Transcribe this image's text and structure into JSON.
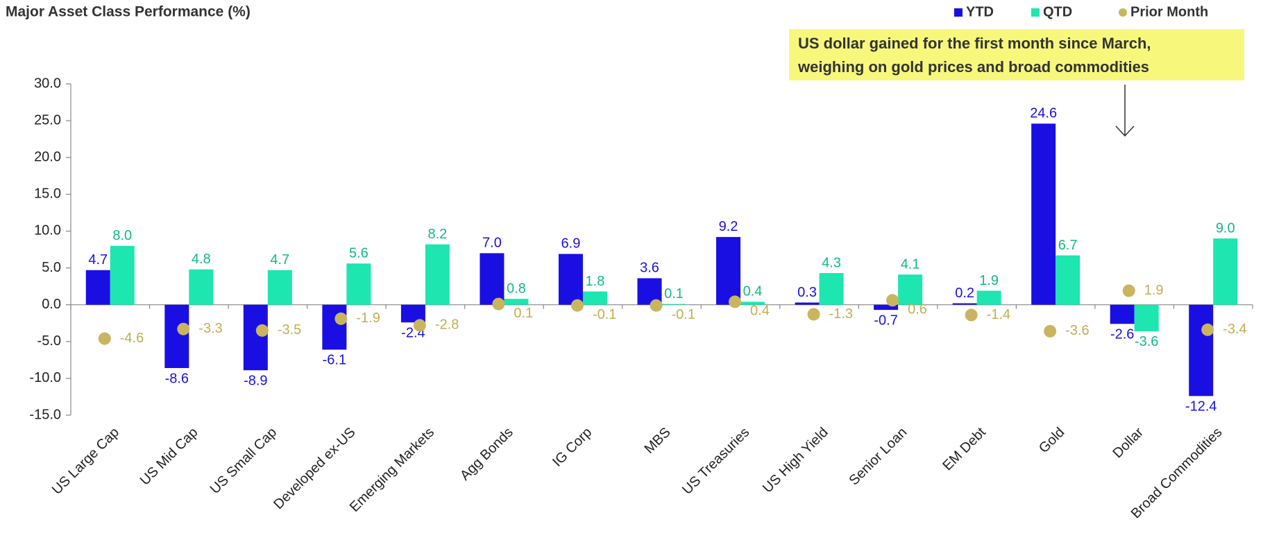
{
  "chart_data": {
    "type": "bar",
    "title": "Major Asset Class Performance (%)",
    "annotation": [
      "US dollar gained for the first month since March,",
      "weighing on gold prices and broad commodities"
    ],
    "categories": [
      "US Large Cap",
      "US Mid Cap",
      "US Small Cap",
      "Developed ex-US",
      "Emerging Markets",
      "Agg Bonds",
      "IG Corp",
      "MBS",
      "US Treasuries",
      "US High Yield",
      "Senior Loan",
      "EM Debt",
      "Gold",
      "Dollar",
      "Broad Commodities"
    ],
    "series": [
      {
        "name": "YTD",
        "color": "#1a0fe3",
        "label_color": "#1a0fe3",
        "mark": "bar",
        "values": [
          4.7,
          -8.6,
          -8.9,
          -6.1,
          -2.4,
          7.0,
          6.9,
          3.6,
          9.2,
          0.3,
          -0.7,
          0.2,
          24.6,
          -2.6,
          -12.4
        ],
        "value_labels": [
          "4.7",
          "-8.6",
          "-8.9",
          "-6.1",
          "-2.4",
          "7.0",
          "6.9",
          "3.6",
          "9.2",
          "0.3",
          "-0.7",
          "0.2",
          "24.6",
          "-2.6",
          "-12.4"
        ]
      },
      {
        "name": "QTD",
        "color": "#1de6b0",
        "label_color": "#10b88a",
        "mark": "bar",
        "values": [
          8.0,
          4.8,
          4.7,
          5.6,
          8.2,
          0.8,
          1.8,
          0.1,
          0.4,
          4.3,
          4.1,
          1.9,
          6.7,
          -3.6,
          9.0
        ],
        "value_labels": [
          "8.0",
          "4.8",
          "4.7",
          "5.6",
          "8.2",
          "0.8",
          "1.8",
          "0.1",
          "0.4",
          "4.3",
          "4.1",
          "1.9",
          "6.7",
          "-3.6",
          "9.0"
        ]
      },
      {
        "name": "Prior Month",
        "color": "#c9b55f",
        "label_color": "#c2ad52",
        "mark": "dot",
        "values": [
          -4.6,
          -3.3,
          -3.5,
          -1.9,
          -2.8,
          0.1,
          -0.1,
          -0.1,
          0.4,
          -1.3,
          0.6,
          -1.4,
          -3.6,
          1.9,
          -3.4
        ],
        "value_labels": [
          "-4.6",
          "-3.3",
          "-3.5",
          "-1.9",
          "-2.8",
          "0.1",
          "-0.1",
          "-0.1",
          "0.4",
          "-1.3",
          "0.6",
          "-1.4",
          "-3.6",
          "1.9",
          "-3.4"
        ]
      }
    ],
    "ylim": [
      -15,
      30
    ],
    "yticks": [
      {
        "value": -15,
        "label": "-15.0"
      },
      {
        "value": -10,
        "label": "-10.0"
      },
      {
        "value": -5,
        "label": "-5.0"
      },
      {
        "value": 0,
        "label": "0.0"
      },
      {
        "value": 5,
        "label": "5.0"
      },
      {
        "value": 10,
        "label": "10.0"
      },
      {
        "value": 15,
        "label": "15.0"
      },
      {
        "value": 20,
        "label": "20.0"
      },
      {
        "value": 25,
        "label": "25.0"
      },
      {
        "value": 30,
        "label": "30.0"
      }
    ],
    "legend": "top-right"
  }
}
